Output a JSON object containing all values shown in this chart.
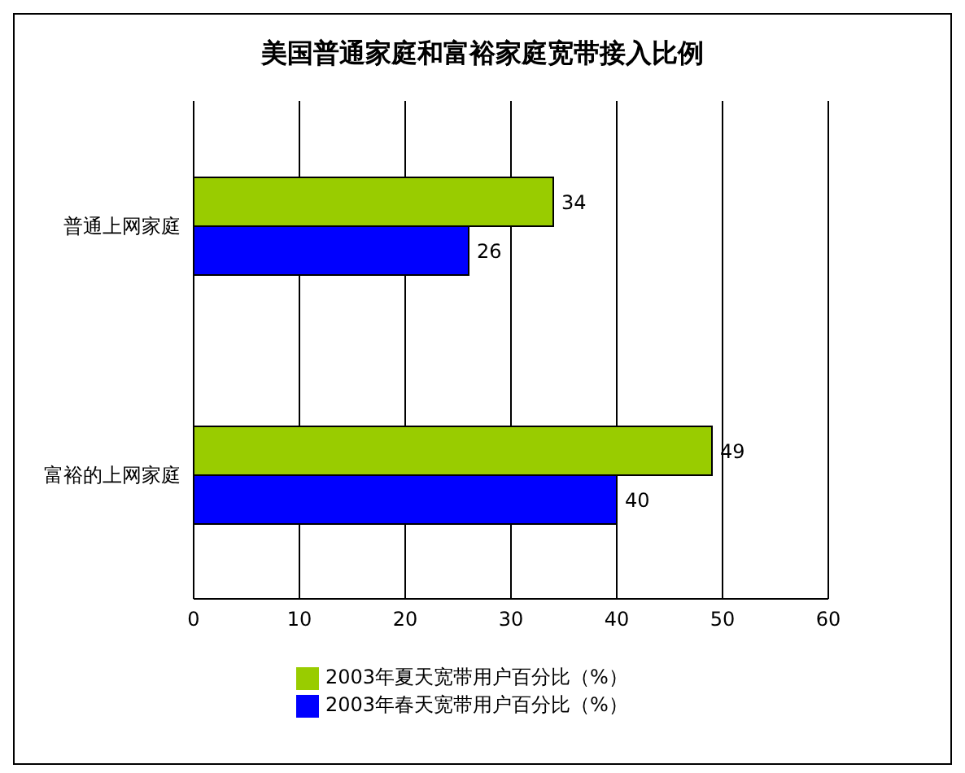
{
  "chart_data": {
    "type": "bar",
    "orientation": "horizontal",
    "title": "美国普通家庭和富裕家庭宽带接入比例",
    "categories": [
      "普通上网家庭",
      "富裕的上网家庭"
    ],
    "series": [
      {
        "name": "2003年夏天宽带用户百分比（%）",
        "color": "#99cc00",
        "values": [
          34,
          49
        ]
      },
      {
        "name": "2003年春天宽带用户百分比（%）",
        "color": "#0000ff",
        "values": [
          26,
          40
        ]
      }
    ],
    "xlim": [
      0,
      60
    ],
    "xticks": [
      0,
      10,
      20,
      30,
      40,
      50,
      60
    ],
    "grid": "x",
    "legend": "bottom",
    "data_labels": true
  }
}
